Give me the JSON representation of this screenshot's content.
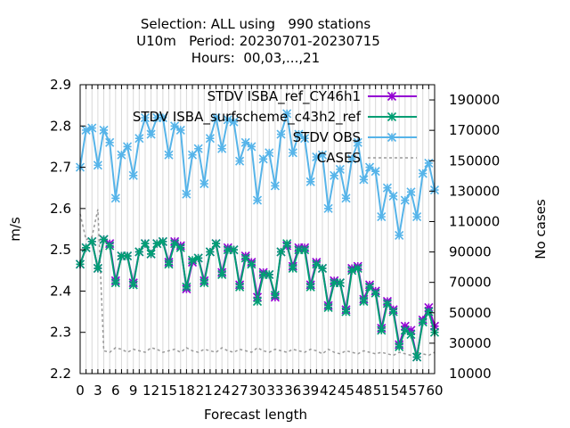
{
  "chart_data": {
    "type": "line",
    "title_lines": [
      "Selection: ALL using   990 stations",
      "U10m   Period: 20230701-20230715",
      "Hours:  00,03,...,21"
    ],
    "xlabel": "Forecast length",
    "ylabel": "m/s",
    "y2label": "No cases",
    "xlim": [
      0,
      60
    ],
    "ylim": [
      2.2,
      2.9
    ],
    "y2lim": [
      10000,
      200000
    ],
    "xticks": [
      "0",
      "1",
      "2",
      "3",
      "4",
      "5",
      "6",
      "7",
      "8",
      "9",
      "10",
      "11",
      "12",
      "13",
      "14",
      "15",
      "16",
      "17",
      "18",
      "19",
      "20",
      "21",
      "22",
      "23",
      "24",
      "25",
      "26",
      "27",
      "28",
      "29",
      "30",
      "31",
      "32",
      "33",
      "34",
      "35",
      "36",
      "37",
      "38",
      "39",
      "40",
      "41",
      "42",
      "43",
      "44",
      "45",
      "46",
      "47",
      "48",
      "49",
      "50",
      "51",
      "52",
      "53",
      "54",
      "55",
      "56",
      "57",
      "58",
      "59",
      "60"
    ],
    "yticks": [
      "2.2",
      "2.3",
      "2.4",
      "2.5",
      "2.6",
      "2.7",
      "2.8",
      "2.9"
    ],
    "y2ticks": [
      "10000",
      "30000",
      "50000",
      "70000",
      "90000",
      "110000",
      "130000",
      "150000",
      "170000",
      "190000"
    ],
    "legend_position": "top-right",
    "x": [
      0,
      1,
      2,
      3,
      4,
      5,
      6,
      7,
      8,
      9,
      10,
      11,
      12,
      13,
      14,
      15,
      16,
      17,
      18,
      19,
      20,
      21,
      22,
      23,
      24,
      25,
      26,
      27,
      28,
      29,
      30,
      31,
      32,
      33,
      34,
      35,
      36,
      37,
      38,
      39,
      40,
      41,
      42,
      43,
      44,
      45,
      46,
      47,
      48,
      49,
      50,
      51,
      52,
      53,
      54,
      55,
      56,
      57,
      58,
      59,
      60
    ],
    "series": [
      {
        "name": "STDV ISBA_ref_CY46h1",
        "color": "#9400d3",
        "axis": "y1",
        "values": [
          2.465,
          2.505,
          2.52,
          2.455,
          2.525,
          2.515,
          2.425,
          2.485,
          2.485,
          2.42,
          2.495,
          2.515,
          2.49,
          2.515,
          2.52,
          2.47,
          2.52,
          2.51,
          2.405,
          2.47,
          2.48,
          2.425,
          2.495,
          2.515,
          2.445,
          2.505,
          2.5,
          2.415,
          2.485,
          2.47,
          2.385,
          2.445,
          2.44,
          2.385,
          2.495,
          2.51,
          2.46,
          2.505,
          2.505,
          2.415,
          2.47,
          2.455,
          2.365,
          2.425,
          2.42,
          2.355,
          2.455,
          2.46,
          2.38,
          2.415,
          2.4,
          2.31,
          2.375,
          2.355,
          2.27,
          2.315,
          2.305,
          2.24,
          2.33,
          2.36,
          2.315
        ]
      },
      {
        "name": "STDV ISBA_surfscheme_c43h2_ref",
        "color": "#009e73",
        "axis": "y1",
        "values": [
          2.465,
          2.505,
          2.52,
          2.455,
          2.525,
          2.51,
          2.42,
          2.485,
          2.485,
          2.415,
          2.495,
          2.515,
          2.49,
          2.515,
          2.52,
          2.465,
          2.515,
          2.505,
          2.41,
          2.475,
          2.48,
          2.42,
          2.495,
          2.515,
          2.44,
          2.5,
          2.5,
          2.41,
          2.48,
          2.465,
          2.375,
          2.44,
          2.44,
          2.39,
          2.495,
          2.515,
          2.455,
          2.5,
          2.5,
          2.41,
          2.465,
          2.455,
          2.36,
          2.42,
          2.42,
          2.35,
          2.45,
          2.455,
          2.375,
          2.41,
          2.395,
          2.305,
          2.37,
          2.35,
          2.265,
          2.305,
          2.295,
          2.24,
          2.325,
          2.35,
          2.3
        ]
      },
      {
        "name": "STDV OBS",
        "color": "#56b4e9",
        "axis": "y1",
        "values": [
          2.7,
          2.79,
          2.795,
          2.705,
          2.79,
          2.76,
          2.625,
          2.73,
          2.75,
          2.68,
          2.77,
          2.82,
          2.78,
          2.82,
          2.82,
          2.73,
          2.8,
          2.79,
          2.635,
          2.73,
          2.745,
          2.66,
          2.77,
          2.82,
          2.745,
          2.815,
          2.81,
          2.715,
          2.76,
          2.75,
          2.62,
          2.72,
          2.735,
          2.655,
          2.78,
          2.83,
          2.735,
          2.78,
          2.77,
          2.665,
          2.725,
          2.73,
          2.6,
          2.68,
          2.695,
          2.625,
          2.72,
          2.76,
          2.67,
          2.7,
          2.69,
          2.58,
          2.65,
          2.63,
          2.535,
          2.62,
          2.64,
          2.58,
          2.685,
          2.71,
          2.645
        ]
      },
      {
        "name": "CASES",
        "color": "#999999",
        "axis": "y2",
        "values": [
          115000,
          98000,
          100000,
          118000,
          25000,
          24000,
          27000,
          26000,
          24000,
          26000,
          25000,
          24000,
          27000,
          26000,
          24000,
          25000,
          26000,
          24000,
          27000,
          25000,
          24000,
          26000,
          25000,
          24000,
          27000,
          25000,
          24000,
          26000,
          25000,
          24000,
          27000,
          25000,
          24000,
          26000,
          25000,
          24000,
          26000,
          25000,
          24000,
          26000,
          25000,
          23000,
          26000,
          24000,
          23000,
          25000,
          24000,
          23000,
          25000,
          24000,
          23000,
          24000,
          23000,
          22000,
          24000,
          23000,
          22000,
          24000,
          23000,
          22000,
          24000
        ]
      }
    ]
  }
}
